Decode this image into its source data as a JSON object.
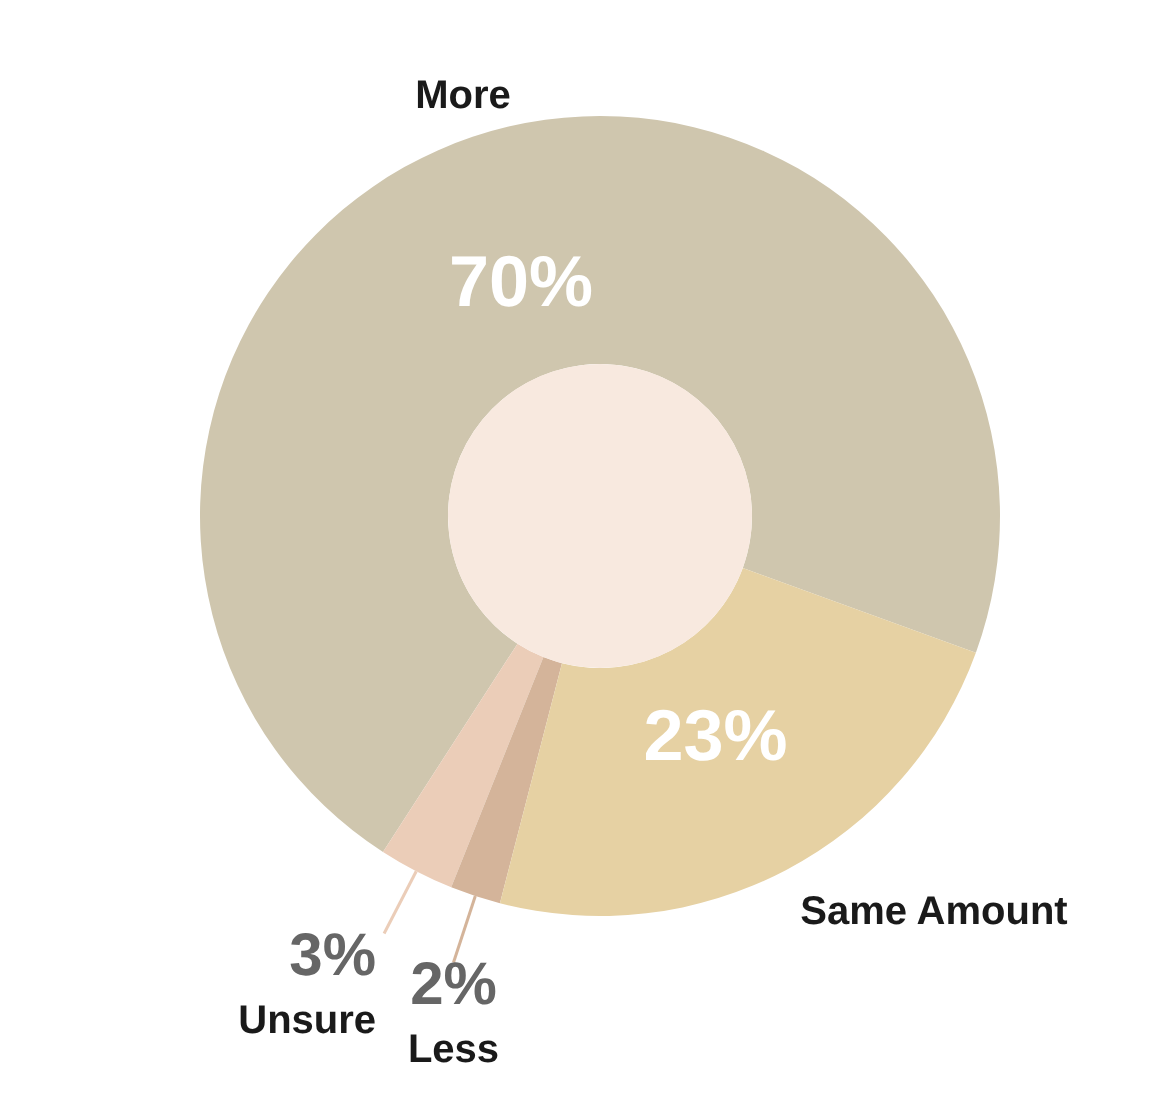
{
  "chart_data": {
    "type": "donut",
    "categories": [
      "More",
      "Unsure",
      "Less",
      "Same Amount"
    ],
    "values": [
      70,
      3,
      2,
      23
    ],
    "colors": [
      "#cfc6ae",
      "#ebcdb8",
      "#d4b49a",
      "#e6d1a3"
    ],
    "value_labels": [
      "70%",
      "3%",
      "2%",
      "23%"
    ]
  }
}
